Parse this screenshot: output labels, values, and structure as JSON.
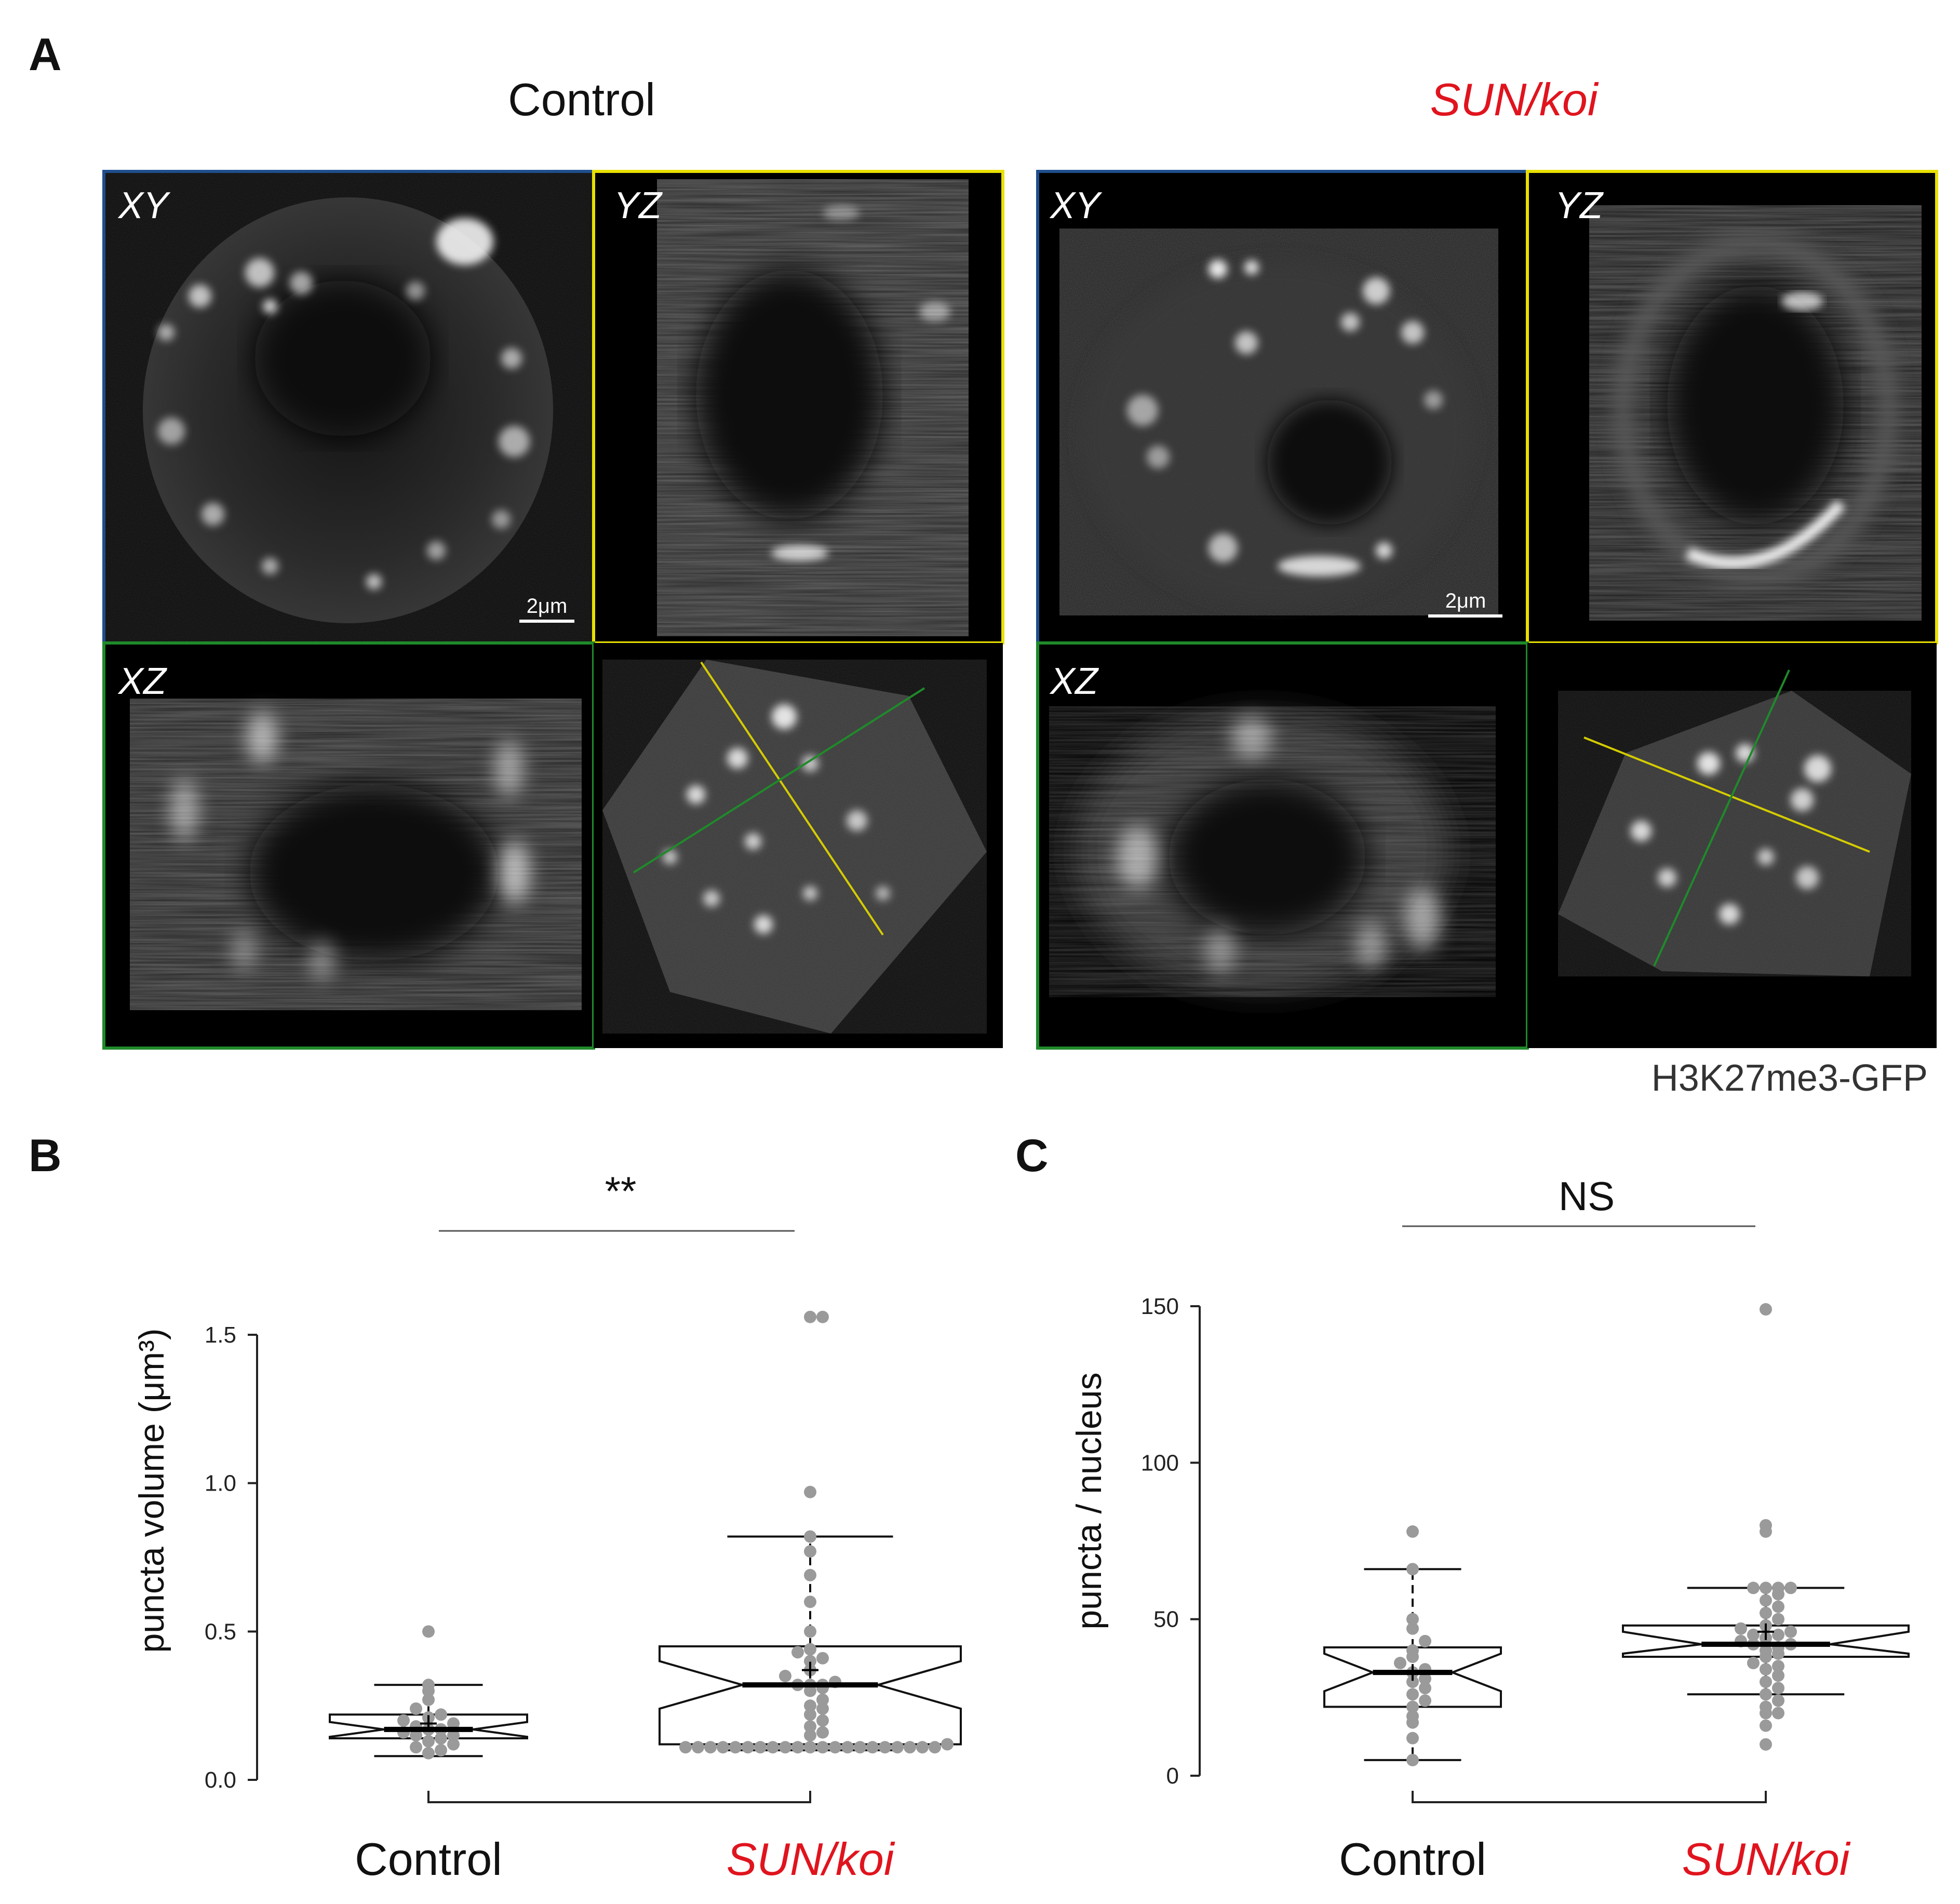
{
  "panels": {
    "a": {
      "letter": "A",
      "control_title": "Control",
      "mutant_title": "SUN/koi",
      "views": {
        "xy": "XY",
        "yz": "YZ",
        "xz": "XZ"
      },
      "scale_bar": "2μm",
      "marker": "H3K27me3-GFP"
    },
    "b": {
      "letter": "B"
    },
    "c": {
      "letter": "C"
    }
  },
  "colors": {
    "mutant_label": "#e0141e",
    "points": "#9a9a9a",
    "xy_frame": "#1f4e8c",
    "yz_frame": "#e8e000",
    "xz_frame": "#1f8a2a"
  },
  "chart_data": [
    {
      "type": "box",
      "ylabel": "puncta volume (μm³)",
      "categories": [
        "Control",
        "SUN/koi"
      ],
      "ylim": [
        0,
        1.5
      ],
      "yticks": [
        "0.0",
        "0.5",
        "1.0",
        "1.5"
      ],
      "significance": "**",
      "groups": [
        {
          "q1": 0.14,
          "median": 0.17,
          "q3": 0.22,
          "whisker_low": 0.08,
          "whisker_high": 0.32,
          "notch_low": 0.145,
          "notch_high": 0.195,
          "mean": 0.19,
          "points": [
            0.09,
            0.1,
            0.11,
            0.12,
            0.13,
            0.14,
            0.15,
            0.15,
            0.16,
            0.17,
            0.17,
            0.18,
            0.19,
            0.2,
            0.21,
            0.22,
            0.24,
            0.27,
            0.3,
            0.32,
            0.5
          ]
        },
        {
          "q1": 0.12,
          "median": 0.32,
          "q3": 0.45,
          "whisker_low": 0.1,
          "whisker_high": 0.82,
          "notch_low": 0.24,
          "notch_high": 0.4,
          "mean": 0.37,
          "points": [
            0.11,
            0.11,
            0.11,
            0.11,
            0.11,
            0.11,
            0.11,
            0.11,
            0.11,
            0.11,
            0.11,
            0.11,
            0.11,
            0.11,
            0.11,
            0.11,
            0.11,
            0.11,
            0.11,
            0.11,
            0.11,
            0.12,
            0.15,
            0.16,
            0.18,
            0.2,
            0.22,
            0.24,
            0.25,
            0.27,
            0.3,
            0.31,
            0.32,
            0.32,
            0.32,
            0.33,
            0.35,
            0.37,
            0.4,
            0.41,
            0.43,
            0.44,
            0.5,
            0.6,
            0.69,
            0.77,
            0.82,
            0.97,
            1.56,
            1.56
          ]
        }
      ]
    },
    {
      "type": "box",
      "ylabel": "puncta / nucleus",
      "categories": [
        "Control",
        "SUN/koi"
      ],
      "ylim": [
        0,
        150
      ],
      "yticks": [
        "0",
        "50",
        "100",
        "150"
      ],
      "significance": "NS",
      "groups": [
        {
          "q1": 22,
          "median": 33,
          "q3": 41,
          "whisker_low": 5,
          "whisker_high": 66,
          "notch_low": 27,
          "notch_high": 39,
          "mean": 33,
          "points": [
            5,
            12,
            17,
            19,
            22,
            24,
            26,
            28,
            30,
            31,
            33,
            34,
            36,
            38,
            40,
            43,
            47,
            50,
            66,
            78
          ]
        },
        {
          "q1": 38,
          "median": 42,
          "q3": 48,
          "whisker_low": 26,
          "whisker_high": 60,
          "notch_low": 39,
          "notch_high": 46,
          "mean": 46,
          "points": [
            10,
            16,
            20,
            20,
            22,
            24,
            26,
            28,
            30,
            32,
            34,
            35,
            36,
            38,
            39,
            40,
            41,
            42,
            42,
            43,
            44,
            45,
            45,
            46,
            47,
            48,
            50,
            52,
            54,
            56,
            58,
            60,
            60,
            60,
            60,
            78,
            80,
            149
          ]
        }
      ]
    }
  ]
}
